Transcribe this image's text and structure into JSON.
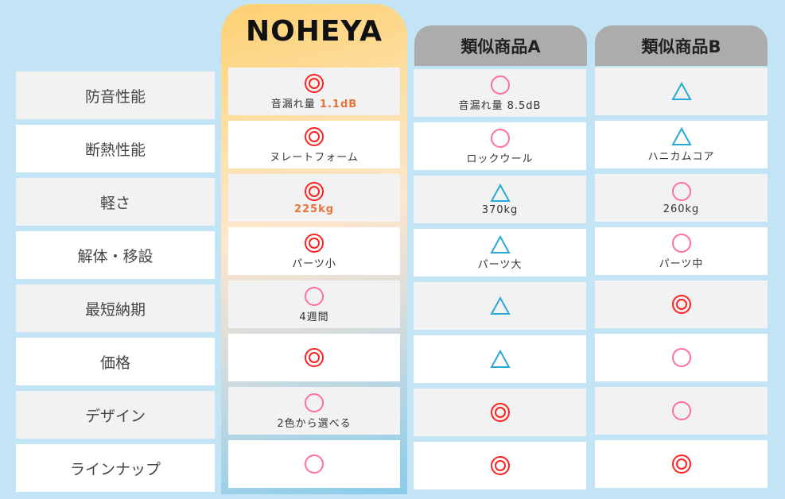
{
  "colors": {
    "double_circle": "#ff2020",
    "circle": "#ff6fa0",
    "triangle": "#29a8d8",
    "highlight": "#e8733a",
    "header_gray": "#acacac",
    "noheya_top": "#fdd070"
  },
  "rows": [
    "防音性能",
    "断熱性能",
    "軽さ",
    "解体・移設",
    "最短納期",
    "価格",
    "デザイン",
    "ラインナップ"
  ],
  "columns": [
    {
      "name": "NOHEYA",
      "cells": [
        {
          "mark": "double-circle",
          "prefix": "音漏れ量 ",
          "text": "1.1dB",
          "highlight": true
        },
        {
          "mark": "double-circle",
          "text": "ヌレートフォーム"
        },
        {
          "mark": "double-circle",
          "text": "225kg",
          "highlight": true
        },
        {
          "mark": "double-circle",
          "text": "パーツ小"
        },
        {
          "mark": "circle",
          "text": "4週間"
        },
        {
          "mark": "double-circle",
          "text": ""
        },
        {
          "mark": "circle",
          "text": "2色から選べる"
        },
        {
          "mark": "circle",
          "text": ""
        }
      ]
    },
    {
      "name": "類似商品A",
      "cells": [
        {
          "mark": "circle",
          "text": "音漏れ量 8.5dB"
        },
        {
          "mark": "circle",
          "text": "ロックウール"
        },
        {
          "mark": "triangle",
          "text": "370kg"
        },
        {
          "mark": "triangle",
          "text": "パーツ大"
        },
        {
          "mark": "triangle",
          "text": ""
        },
        {
          "mark": "triangle",
          "text": ""
        },
        {
          "mark": "double-circle",
          "text": ""
        },
        {
          "mark": "double-circle",
          "text": ""
        }
      ]
    },
    {
      "name": "類似商品B",
      "cells": [
        {
          "mark": "triangle",
          "text": ""
        },
        {
          "mark": "triangle",
          "text": "ハニカムコア"
        },
        {
          "mark": "circle",
          "text": "260kg"
        },
        {
          "mark": "circle",
          "text": "パーツ中"
        },
        {
          "mark": "double-circle",
          "text": ""
        },
        {
          "mark": "circle",
          "text": ""
        },
        {
          "mark": "circle",
          "text": ""
        },
        {
          "mark": "double-circle",
          "text": ""
        }
      ]
    }
  ]
}
